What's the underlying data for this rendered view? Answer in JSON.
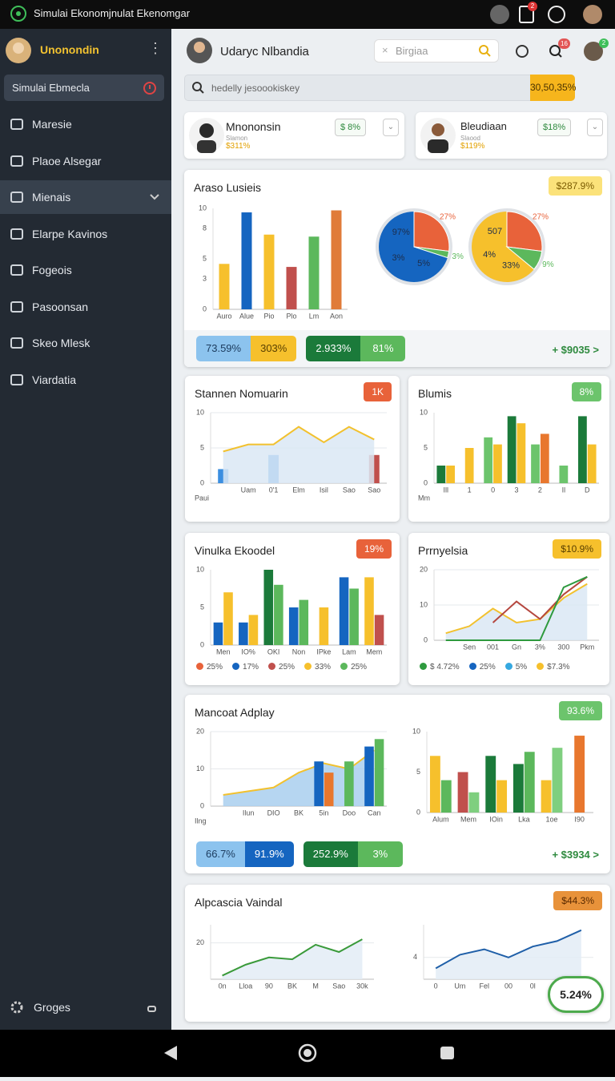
{
  "status_bar": {
    "title": "Simulai Ekonomjnulat Ekenomgar",
    "badge": "2"
  },
  "sidebar": {
    "user": "Unonondin",
    "active": "Simulai Ebmecla",
    "items": [
      "Maresie",
      "Plaoe Alsegar",
      "Mienais",
      "Elarpe Kavinos",
      "Fogeois",
      "Pasoonsan",
      "Skeo Mlesk",
      "Viardatia"
    ],
    "selected_index": 2,
    "footer": "Groges"
  },
  "header": {
    "user": "Udaryc Nlbandia",
    "search_placeholder": "Birgiaa",
    "notifications": "16",
    "avatar_badge": "2"
  },
  "search": {
    "placeholder": "hedelly jesoookiskey",
    "value": "30,50,35%"
  },
  "profiles": [
    {
      "name": "Mnononsin",
      "role": "Slamon",
      "stat": "$311%",
      "badge": "$ 8%"
    },
    {
      "name": "Bleudiaan",
      "role": "Slaood",
      "stat": "$119%",
      "badge": "$18%"
    }
  ],
  "panels": [
    {
      "title": "Araso Lusieis",
      "badge": "$287.9%",
      "badge_color": "#fbe27a",
      "badge_text_color": "#7a5a00",
      "charts": [
        {
          "type": "bar",
          "categories": [
            "Auro",
            "Alue",
            "Pio",
            "Plo",
            "Lm",
            "Aon"
          ],
          "ylim": [
            0,
            10
          ],
          "yticks": [
            0,
            3,
            5,
            8,
            10
          ],
          "series": [
            {
              "values": [
                4.5,
                9.6,
                7.4,
                4.2,
                7.2,
                9.8
              ],
              "colors": [
                "#f6c02c",
                "#1565c0",
                "#f6c02c",
                "#c0504d",
                "#5cb85c",
                "#e07b39"
              ]
            }
          ]
        },
        {
          "type": "pie",
          "values": [
            27,
            3
          ],
          "value_labels": [
            "27%",
            "3%"
          ],
          "colors": [
            "#e8623a",
            "#5cb85c"
          ],
          "base_color": "#1565c0",
          "annotations": [
            "5%",
            "3%",
            "97%"
          ]
        },
        {
          "type": "pie",
          "values": [
            27,
            9
          ],
          "value_labels": [
            "27%",
            "9%"
          ],
          "colors": [
            "#e8623a",
            "#5cb85c"
          ],
          "base_color": "#f6c02c",
          "annotations": [
            "33%",
            "4%",
            "507"
          ]
        }
      ],
      "pills": [
        {
          "text": "73.59%",
          "color": "#8cc3ee",
          "text_color": "#1d3d60"
        },
        {
          "text": "303%",
          "color": "#f6c02c",
          "text_color": "#5a4000"
        },
        {
          "text": "2.933%",
          "color": "#1b7a3a",
          "text_color": "#ffffff"
        },
        {
          "text": "81%",
          "color": "#5cb85c",
          "text_color": "#ffffff"
        }
      ],
      "link": "+ $9035 >"
    },
    {
      "title": "Stannen Nomuarin",
      "badge": "1K",
      "badge_color": "#e8623a",
      "badge_text_color": "#ffffff",
      "charts": [
        {
          "type": "line",
          "grid": true,
          "categories": [
            null,
            "Uam",
            "0'1",
            "Elm",
            "Isil",
            "Sao",
            "Sao"
          ],
          "ylim": [
            0,
            10
          ],
          "yticks": [
            0,
            5,
            10
          ],
          "x_label": "Paui",
          "series": [
            {
              "type": "bar",
              "color": "#3b8ee0",
              "values": [
                2,
                null,
                4,
                null,
                null,
                null,
                null
              ]
            },
            {
              "type": "bar",
              "color": "#c0504d",
              "values": [
                null,
                null,
                null,
                null,
                null,
                null,
                4
              ]
            },
            {
              "type": "line",
              "color": "#f2c12e",
              "area": true,
              "area_color": "#dbe8f5",
              "values": [
                4.5,
                5.5,
                5.5,
                8,
                5.8,
                8,
                6.2
              ]
            }
          ]
        }
      ]
    },
    {
      "title": "Blumis",
      "badge": "8%",
      "badge_color": "#6cc46c",
      "badge_text_color": "#ffffff",
      "charts": [
        {
          "type": "bar",
          "categories": [
            "Ill",
            "1",
            "0",
            "3",
            "2",
            "Il",
            "D"
          ],
          "ylim": [
            0,
            10
          ],
          "yticks": [
            0,
            5,
            10
          ],
          "x_label": "Mm",
          "series": [
            {
              "color": "#1b7a3a",
              "values": [
                2.5,
                null,
                null,
                9.5,
                null,
                null,
                9.5
              ]
            },
            {
              "color": "#6cc46c",
              "values": [
                null,
                null,
                6.5,
                null,
                5.5,
                2.5,
                null
              ]
            },
            {
              "color": "#f6c02c",
              "values": [
                2.5,
                5,
                5.5,
                8.5,
                null,
                null,
                5.5
              ]
            },
            {
              "color": "#e8772e",
              "values": [
                null,
                null,
                null,
                null,
                7,
                null,
                null
              ]
            }
          ]
        }
      ]
    },
    {
      "title": "Vinulka Ekoodel",
      "badge": "19%",
      "badge_color": "#e8623a",
      "badge_text_color": "#ffffff",
      "charts": [
        {
          "type": "bar",
          "categories": [
            "Men",
            "IO%",
            "OKI",
            "Non",
            "IPke",
            "Lam",
            "Mem"
          ],
          "ylim": [
            0,
            10
          ],
          "yticks": [
            0,
            5,
            10
          ],
          "series": [
            {
              "color": "#1565c0",
              "values": [
                3,
                3,
                null,
                5,
                null,
                9,
                null
              ]
            },
            {
              "color": "#f6c02c",
              "values": [
                7,
                4,
                null,
                null,
                5,
                null,
                9
              ]
            },
            {
              "color": "#1b7a3a",
              "values": [
                null,
                null,
                10,
                null,
                null,
                null,
                null
              ]
            },
            {
              "color": "#5cb85c",
              "values": [
                null,
                null,
                8,
                6,
                null,
                7.5,
                null
              ]
            },
            {
              "color": "#c0504d",
              "values": [
                null,
                null,
                null,
                null,
                null,
                null,
                4
              ]
            }
          ]
        }
      ],
      "legend": [
        {
          "label": "25%",
          "color": "#e8623a"
        },
        {
          "label": "17%",
          "color": "#1565c0"
        },
        {
          "label": "25%",
          "color": "#c0504d"
        },
        {
          "label": "33%",
          "color": "#f6c02c"
        },
        {
          "label": "25%",
          "color": "#5cb85c"
        }
      ]
    },
    {
      "title": "Prrnyelsia",
      "badge": "$10.9%",
      "badge_color": "#f6c02c",
      "badge_text_color": "#5a4000",
      "charts": [
        {
          "type": "line",
          "grid": true,
          "categories": [
            null,
            "Sen",
            "001",
            "Gn",
            "3%",
            "300",
            "Pkm"
          ],
          "ylim": [
            0,
            20
          ],
          "yticks": [
            0,
            10,
            20
          ],
          "series": [
            {
              "color": "#f2c12e",
              "area": true,
              "area_color": "#dbe8f5",
              "values": [
                2,
                4,
                9,
                5,
                6,
                12,
                16
              ]
            },
            {
              "color": "#b5473f",
              "values": [
                null,
                null,
                5,
                11,
                6,
                13,
                18
              ]
            },
            {
              "color": "#2e9a3e",
              "values": [
                0,
                0,
                0,
                0,
                0,
                15,
                18
              ]
            }
          ]
        }
      ],
      "legend": [
        {
          "label": "$ 4.72%",
          "color": "#2e9a3e"
        },
        {
          "label": "25%",
          "color": "#1565c0"
        },
        {
          "label": "5%",
          "color": "#35a8e0"
        },
        {
          "label": "$7.3%",
          "color": "#f6c02c"
        }
      ]
    },
    {
      "title": "Mancoat Adplay",
      "badge": "93.6%",
      "badge_color": "#6cc46c",
      "badge_text_color": "#ffffff",
      "charts": [
        {
          "type": "line",
          "grid": true,
          "categories": [
            null,
            "Ilun",
            "DIO",
            "BK",
            "5in",
            "Doo",
            "Can"
          ],
          "ylim": [
            0,
            20
          ],
          "yticks": [
            0,
            10,
            20
          ],
          "x_label": "Ilng",
          "series": [
            {
              "type": "line",
              "color": "#f2c12e",
              "area": true,
              "area_color": "#a9cfee",
              "values": [
                3,
                4,
                5,
                9,
                11.5,
                10,
                15
              ]
            },
            {
              "type": "bar",
              "color": "#1565c0",
              "values": [
                null,
                null,
                null,
                null,
                12,
                null,
                16
              ]
            },
            {
              "type": "bar",
              "color": "#e8772e",
              "values": [
                null,
                null,
                null,
                null,
                9,
                null,
                null
              ]
            },
            {
              "type": "bar",
              "color": "#5cb85c",
              "values": [
                null,
                null,
                null,
                null,
                null,
                12,
                18
              ]
            }
          ]
        },
        {
          "type": "bar",
          "categories": [
            "Alum",
            "Mem",
            "IOin",
            "Lka",
            "1oe",
            "I90"
          ],
          "ylim": [
            0,
            10
          ],
          "yticks": [
            0,
            5,
            10
          ],
          "series": [
            {
              "values": [
                7,
                5,
                7,
                6,
                4,
                9.5
              ],
              "colors": [
                "#f6c02c",
                "#c0504d",
                "#1b7a3a",
                "#1b7a3a",
                "#f6c02c",
                "#e8772e"
              ]
            },
            {
              "values": [
                4,
                2.5,
                4,
                7.5,
                8,
                null
              ],
              "colors": [
                "#5cb85c",
                "#7fcf7f",
                "#f6c02c",
                "#5cb85c",
                "#7fcf7f",
                "#e8772e"
              ]
            }
          ]
        }
      ],
      "pills": [
        {
          "text": "66.7%",
          "color": "#8cc3ee",
          "text_color": "#1d3d60"
        },
        {
          "text": "91.9%",
          "color": "#1565c0",
          "text_color": "#ffffff"
        },
        {
          "text": "252.9%",
          "color": "#1b7a3a",
          "text_color": "#ffffff"
        },
        {
          "text": "3%",
          "color": "#5cb85c",
          "text_color": "#ffffff"
        }
      ],
      "link": "+ $3934 >"
    },
    {
      "title": "Alpcascia Vaindal",
      "badge": "$44.3%",
      "badge_color": "#e8923a",
      "badge_text_color": "#5a2a00",
      "charts": [
        {
          "type": "line",
          "categories": [
            "0n",
            "Lloa",
            "90",
            "BK",
            "M",
            "Sao",
            "30k"
          ],
          "ylim": [
            0,
            30
          ],
          "yticks": [
            20
          ],
          "grid": true,
          "series": [
            {
              "color": "#3a9a3a",
              "area": true,
              "area_color": "#e3ecf6",
              "values": [
                2,
                8,
                12,
                11,
                19,
                15,
                22
              ]
            }
          ]
        },
        {
          "type": "line",
          "categories": [
            "0",
            "Um",
            "Fel",
            "00",
            "0l",
            null,
            null
          ],
          "ylim": [
            0,
            10
          ],
          "yticks": [
            4
          ],
          "grid": true,
          "series": [
            {
              "color": "#1f5fa8",
              "area": true,
              "area_color": "#e3ecf6",
              "values": [
                2,
                4.5,
                5.5,
                4,
                6,
                7,
                9
              ]
            }
          ]
        }
      ],
      "float_badge": "5.24%"
    }
  ]
}
